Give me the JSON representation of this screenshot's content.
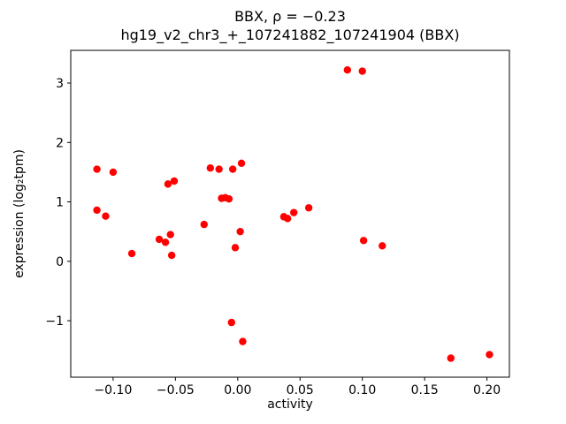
{
  "chart_data": {
    "type": "scatter",
    "title": "BBX, ρ = −0.23",
    "subtitle": "hg19_v2_chr3_+_107241882_107241904 (BBX)",
    "xlabel": "activity",
    "ylabel": "expression (log₂tpm)",
    "xlim": [
      -0.134,
      0.218
    ],
    "ylim": [
      -1.95,
      3.55
    ],
    "xticks": [
      -0.1,
      -0.05,
      0.0,
      0.05,
      0.1,
      0.15,
      0.2
    ],
    "yticks": [
      -1,
      0,
      1,
      2,
      3
    ],
    "marker_color": "#ff0000",
    "grid": false,
    "legend": "none",
    "points": [
      [
        -0.113,
        1.55
      ],
      [
        -0.1,
        1.5
      ],
      [
        -0.113,
        0.86
      ],
      [
        -0.106,
        0.76
      ],
      [
        -0.085,
        0.13
      ],
      [
        -0.063,
        0.37
      ],
      [
        -0.058,
        0.32
      ],
      [
        -0.054,
        0.45
      ],
      [
        -0.056,
        1.3
      ],
      [
        -0.051,
        1.35
      ],
      [
        -0.053,
        0.1
      ],
      [
        -0.027,
        0.62
      ],
      [
        -0.022,
        1.57
      ],
      [
        -0.015,
        1.55
      ],
      [
        -0.013,
        1.06
      ],
      [
        -0.01,
        1.07
      ],
      [
        -0.007,
        1.05
      ],
      [
        -0.004,
        1.55
      ],
      [
        0.003,
        1.65
      ],
      [
        0.002,
        0.5
      ],
      [
        -0.002,
        0.23
      ],
      [
        -0.005,
        -1.03
      ],
      [
        0.004,
        -1.35
      ],
      [
        0.037,
        0.75
      ],
      [
        0.04,
        0.72
      ],
      [
        0.045,
        0.82
      ],
      [
        0.057,
        0.9
      ],
      [
        0.088,
        3.22
      ],
      [
        0.1,
        3.2
      ],
      [
        0.101,
        0.35
      ],
      [
        0.116,
        0.26
      ],
      [
        0.171,
        -1.63
      ],
      [
        0.202,
        -1.57
      ]
    ]
  }
}
